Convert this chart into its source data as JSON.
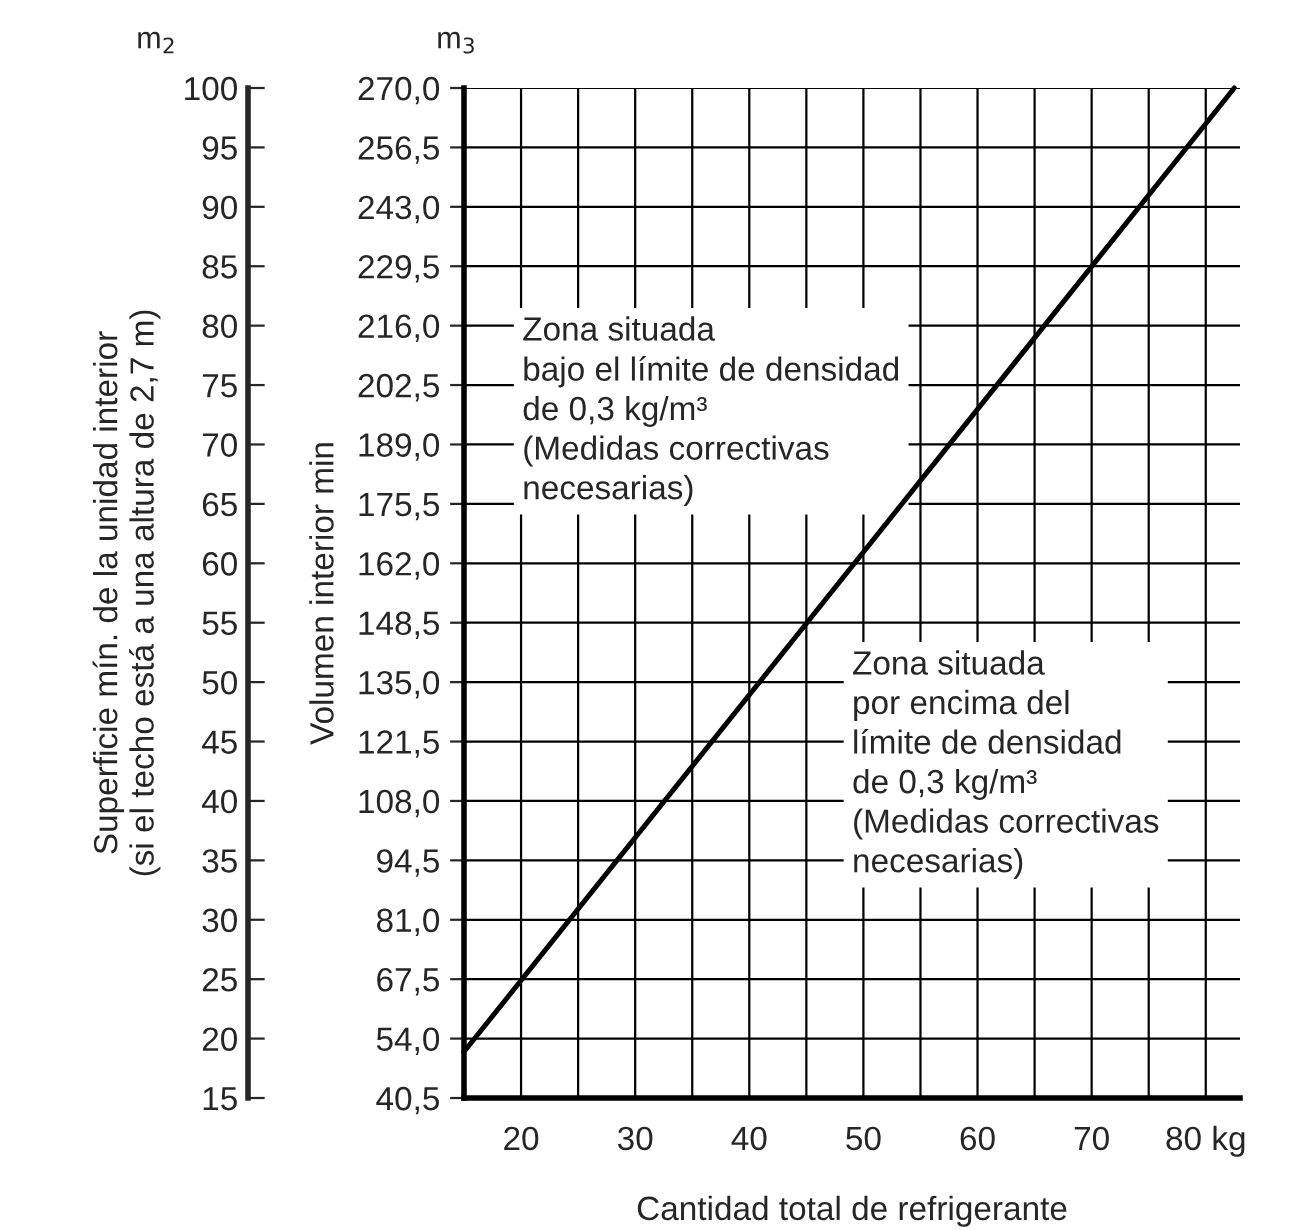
{
  "chart_data": {
    "type": "line",
    "xlabel": "Cantidad total de refrigerante",
    "ylabel": "Volumen interior min",
    "y2label": "Superficie mín. de la unidad interior\n(si el techo está a una altura de 2,7 m)",
    "x": [
      15,
      82.5
    ],
    "series": [
      {
        "color": "#000000",
        "values": [
          51,
          270
        ]
      }
    ],
    "xlim": [
      15,
      83
    ],
    "xticks": [
      {
        "value": 15,
        "label": null
      },
      20,
      {
        "value": 25,
        "label": null
      },
      30,
      {
        "value": 35,
        "label": null
      },
      40,
      {
        "value": 45,
        "label": null
      },
      50,
      {
        "value": 55,
        "label": null
      },
      60,
      {
        "value": 65,
        "label": null
      },
      70,
      {
        "value": 75,
        "label": null
      },
      {
        "value": 80,
        "label": "80 kg"
      }
    ],
    "ylim": [
      40.5,
      270
    ],
    "yticks": [
      {
        "value": 40.5,
        "label": "40,5"
      },
      {
        "value": 54,
        "label": "54,0"
      },
      {
        "value": 67.5,
        "label": "67,5"
      },
      {
        "value": 81,
        "label": "81,0"
      },
      {
        "value": 94.5,
        "label": "94,5"
      },
      {
        "value": 108,
        "label": "108,0"
      },
      {
        "value": 121.5,
        "label": "121,5"
      },
      {
        "value": 135,
        "label": "135,0"
      },
      {
        "value": 148.5,
        "label": "148,5"
      },
      {
        "value": 162,
        "label": "162,0"
      },
      {
        "value": 175.5,
        "label": "175,5"
      },
      {
        "value": 189,
        "label": "189,0"
      },
      {
        "value": 202.5,
        "label": "202,5"
      },
      {
        "value": 216,
        "label": "216,0"
      },
      {
        "value": 229.5,
        "label": "229,5"
      },
      {
        "value": 243,
        "label": "243,0"
      },
      {
        "value": 256.5,
        "label": "256,5"
      },
      {
        "value": 270,
        "label": "270,0"
      }
    ],
    "y2lim": [
      15,
      100
    ],
    "y2ticks": [
      15,
      20,
      25,
      30,
      35,
      40,
      45,
      50,
      55,
      60,
      65,
      70,
      75,
      80,
      85,
      90,
      95,
      100
    ],
    "grid": true,
    "line_style": "solid",
    "marker": "none",
    "annotations": [
      "m$_{2}$",
      "m$_{3}$",
      "Zona situada\nbajo el límite de densidad\nde 0,3 kg/m³\n(Medidas correctivas\nnecesarias)",
      "Zona situada\npor encima del\nlímite de densidad\nde 0,3 kg/m³\n(Medidas correctivas\nnecesarias)"
    ]
  }
}
